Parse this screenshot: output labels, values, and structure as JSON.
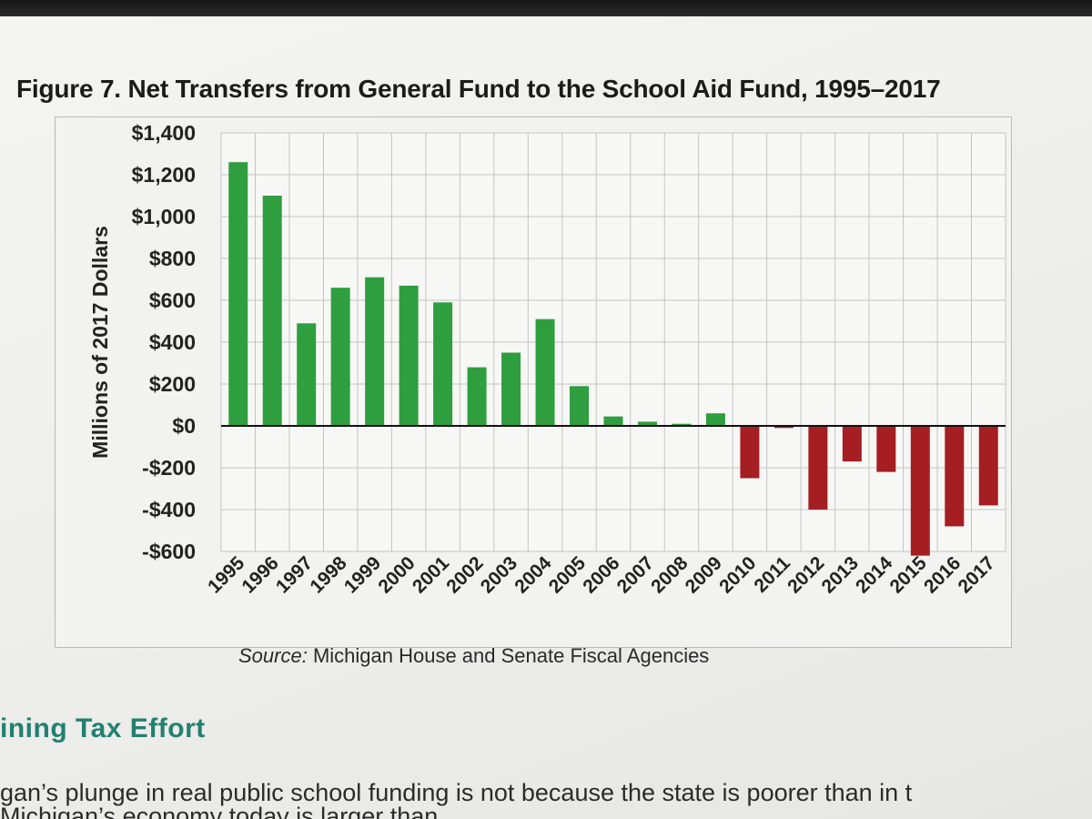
{
  "figure": {
    "title": "Figure 7. Net Transfers from General Fund to the School Aid Fund, 1995–2017",
    "source_lead": "Source:",
    "source_text": " Michigan House and Senate Fiscal Agencies"
  },
  "article": {
    "heading": "ining Tax Effort",
    "line1": "gan’s plunge in real public school funding is not because the state is poorer than in t",
    "line2": " Michigan’s economy today is larger than"
  },
  "chart_data": {
    "type": "bar",
    "title": "Figure 7. Net Transfers from General Fund to the School Aid Fund, 1995–2017",
    "xlabel": "",
    "ylabel": "Millions of 2017 Dollars",
    "ylim": [
      -600,
      1400
    ],
    "yticks": [
      1400,
      1200,
      1000,
      800,
      600,
      400,
      200,
      0,
      -200,
      -400,
      -600
    ],
    "ytick_labels": [
      "$1,400",
      "$1,200",
      "$1,000",
      "$800",
      "$600",
      "$400",
      "$200",
      "$0",
      "-$200",
      "-$400",
      "-$600"
    ],
    "categories": [
      "1995",
      "1996",
      "1997",
      "1998",
      "1999",
      "2000",
      "2001",
      "2002",
      "2003",
      "2004",
      "2005",
      "2006",
      "2007",
      "2008",
      "2009",
      "2010",
      "2011",
      "2012",
      "2013",
      "2014",
      "2015",
      "2016",
      "2017"
    ],
    "values": [
      1260,
      1100,
      490,
      660,
      710,
      670,
      590,
      280,
      350,
      510,
      190,
      45,
      20,
      10,
      60,
      -250,
      -10,
      -400,
      -170,
      -220,
      -620,
      -480,
      -380
    ],
    "colors": {
      "positive": "#2e9e3f",
      "negative": "#a51e22"
    },
    "grid": true,
    "legend": "none"
  }
}
